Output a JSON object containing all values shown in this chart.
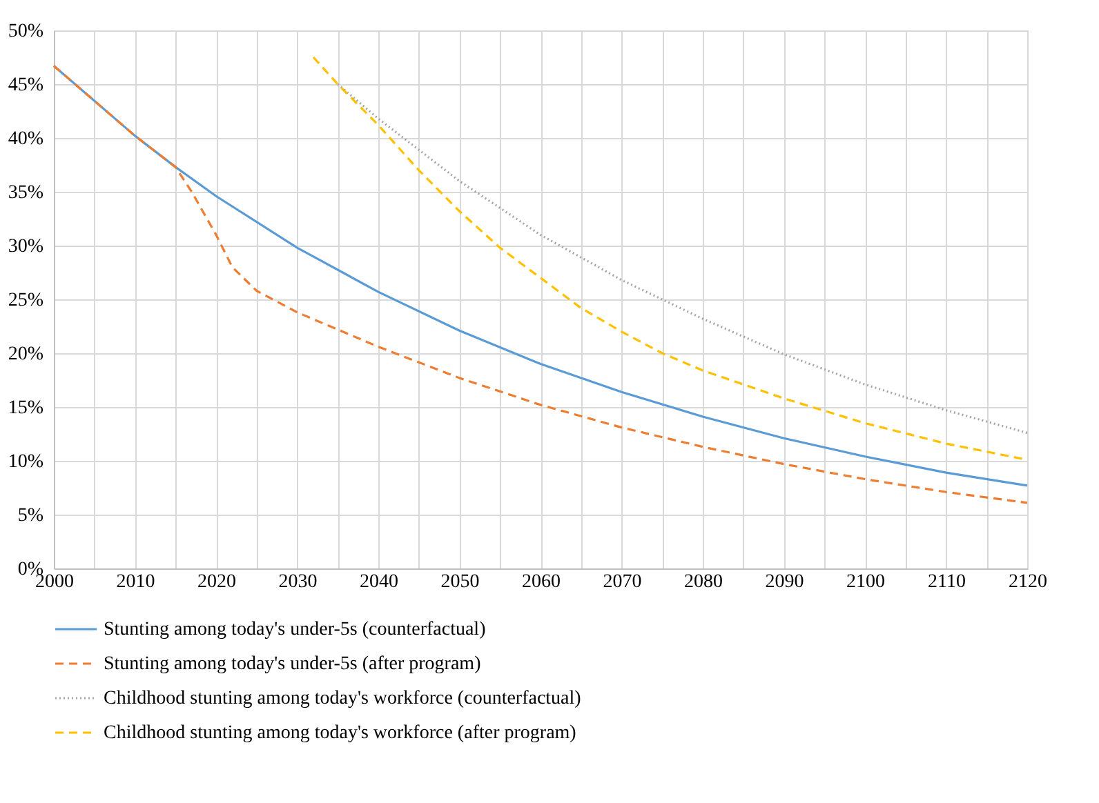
{
  "chart_data": {
    "type": "line",
    "xlim": [
      2000,
      2120
    ],
    "xticks": [
      2000,
      {
        "value": 2005,
        "label": null
      },
      2010,
      {
        "value": 2015,
        "label": null
      },
      2020,
      {
        "value": 2025,
        "label": null
      },
      2030,
      {
        "value": 2035,
        "label": null
      },
      2040,
      {
        "value": 2045,
        "label": null
      },
      2050,
      {
        "value": 2055,
        "label": null
      },
      2060,
      {
        "value": 2065,
        "label": null
      },
      2070,
      {
        "value": 2075,
        "label": null
      },
      2080,
      {
        "value": 2085,
        "label": null
      },
      2090,
      {
        "value": 2095,
        "label": null
      },
      2100,
      {
        "value": 2105,
        "label": null
      },
      2110,
      {
        "value": 2115,
        "label": null
      },
      2120
    ],
    "ylim": [
      0,
      50
    ],
    "yticks": [
      {
        "value": 0,
        "label": "0%"
      },
      {
        "value": 5,
        "label": "5%"
      },
      {
        "value": 10,
        "label": "10%"
      },
      {
        "value": 15,
        "label": "15%"
      },
      {
        "value": 20,
        "label": "20%"
      },
      {
        "value": 25,
        "label": "25%"
      },
      {
        "value": 30,
        "label": "30%"
      },
      {
        "value": 35,
        "label": "35%"
      },
      {
        "value": 40,
        "label": "40%"
      },
      {
        "value": 45,
        "label": "45%"
      },
      {
        "value": 50,
        "label": "50%"
      }
    ],
    "grid": true,
    "legend": "bottom",
    "marker": "none",
    "series": [
      {
        "name": "Stunting among today's under-5s (counterfactual)",
        "color": "#5b9bd5",
        "line_style": "solid",
        "x": [
          2000,
          2010,
          2015,
          2020,
          2030,
          2040,
          2050,
          2060,
          2070,
          2080,
          2090,
          2100,
          2110,
          2120
        ],
        "values": [
          46.7,
          40.2,
          37.3,
          34.6,
          29.8,
          25.7,
          22.1,
          19.0,
          16.4,
          14.1,
          12.1,
          10.4,
          8.9,
          7.7
        ]
      },
      {
        "name": "Stunting among today's under-5s (after program)",
        "color": "#ed7d31",
        "line_style": "dashed",
        "x": [
          2000,
          2010,
          2015,
          2017,
          2020,
          2022,
          2025,
          2030,
          2040,
          2050,
          2060,
          2070,
          2080,
          2090,
          2100,
          2110,
          2120
        ],
        "values": [
          46.7,
          40.2,
          37.3,
          35.0,
          31.0,
          28.0,
          25.8,
          23.8,
          20.6,
          17.7,
          15.2,
          13.1,
          11.3,
          9.7,
          8.3,
          7.1,
          6.1
        ]
      },
      {
        "name": "Childhood stunting among today's workforce (counterfactual)",
        "color": "#a5a5a5",
        "line_style": "dotted",
        "x": [
          2035,
          2040,
          2050,
          2060,
          2070,
          2080,
          2090,
          2100,
          2110,
          2120
        ],
        "values": [
          45.0,
          41.8,
          36.0,
          31.0,
          26.8,
          23.2,
          19.9,
          17.1,
          14.7,
          12.6
        ]
      },
      {
        "name": "Childhood stunting among today's workforce (after program)",
        "color": "#ffc000",
        "line_style": "dashed",
        "x": [
          2032,
          2035,
          2040,
          2045,
          2050,
          2055,
          2060,
          2065,
          2070,
          2075,
          2080,
          2090,
          2100,
          2110,
          2120
        ],
        "values": [
          47.5,
          45.0,
          41.2,
          37.0,
          33.2,
          29.8,
          27.0,
          24.2,
          22.0,
          20.0,
          18.4,
          15.8,
          13.5,
          11.6,
          10.1
        ]
      }
    ]
  }
}
